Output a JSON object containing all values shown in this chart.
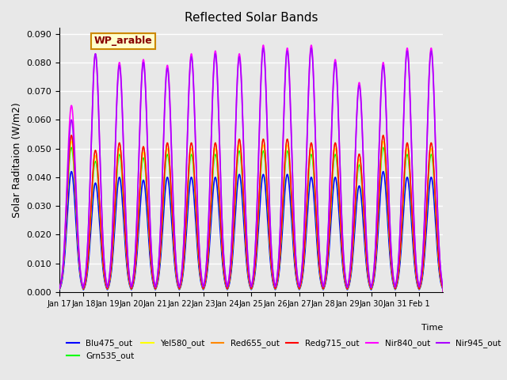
{
  "title": "Reflected Solar Bands",
  "xlabel": "Time",
  "ylabel": "Solar Raditaion (W/m2)",
  "ylim": [
    0,
    0.092
  ],
  "yticks": [
    0.0,
    0.01,
    0.02,
    0.03,
    0.04,
    0.05,
    0.06,
    0.07,
    0.08,
    0.09
  ],
  "annotation": "WP_arable",
  "annotation_bg": "#ffffcc",
  "annotation_border": "#cc8800",
  "annotation_text_color": "#880000",
  "bg_color": "#e8e8e8",
  "plot_bg_color": "#e8e8e8",
  "grid_color": "#ffffff",
  "series": [
    {
      "name": "Blu475_out",
      "color": "#0000ff",
      "lw": 1.2,
      "zorder": 3
    },
    {
      "name": "Grn535_out",
      "color": "#00ff00",
      "lw": 1.0,
      "zorder": 4
    },
    {
      "name": "Yel580_out",
      "color": "#ffff00",
      "lw": 1.0,
      "zorder": 4
    },
    {
      "name": "Red655_out",
      "color": "#ff8800",
      "lw": 1.0,
      "zorder": 4
    },
    {
      "name": "Redg715_out",
      "color": "#ff0000",
      "lw": 1.0,
      "zorder": 4
    },
    {
      "name": "Nir840_out",
      "color": "#ff00ff",
      "lw": 1.2,
      "zorder": 5
    },
    {
      "name": "Nir945_out",
      "color": "#aa00ff",
      "lw": 1.2,
      "zorder": 5
    }
  ],
  "xtick_positions": [
    0,
    1,
    2,
    3,
    4,
    5,
    6,
    7,
    8,
    9,
    10,
    11,
    12,
    13,
    14,
    15
  ],
  "xtick_labels": [
    "Jan 17",
    "Jan 18",
    "Jan 19",
    "Jan 20",
    "Jan 21",
    "Jan 22",
    "Jan 23",
    "Jan 24",
    "Jan 25",
    "Jan 26",
    "Jan 27",
    "Jan 28",
    "Jan 29",
    "Jan 30",
    "Jan 31",
    "Feb 1"
  ],
  "n_days": 16,
  "day_peaks_blu": [
    0.042,
    0.038,
    0.04,
    0.039,
    0.04,
    0.04,
    0.04,
    0.041,
    0.041,
    0.041,
    0.04,
    0.04,
    0.037,
    0.042,
    0.04,
    0.04
  ],
  "day_peaks_nir840": [
    0.065,
    0.083,
    0.08,
    0.081,
    0.079,
    0.083,
    0.084,
    0.083,
    0.086,
    0.085,
    0.086,
    0.081,
    0.073,
    0.08,
    0.085,
    0.085
  ],
  "day_peaks_nir945": [
    0.06,
    0.083,
    0.079,
    0.08,
    0.078,
    0.082,
    0.083,
    0.082,
    0.085,
    0.084,
    0.085,
    0.08,
    0.072,
    0.079,
    0.084,
    0.084
  ]
}
